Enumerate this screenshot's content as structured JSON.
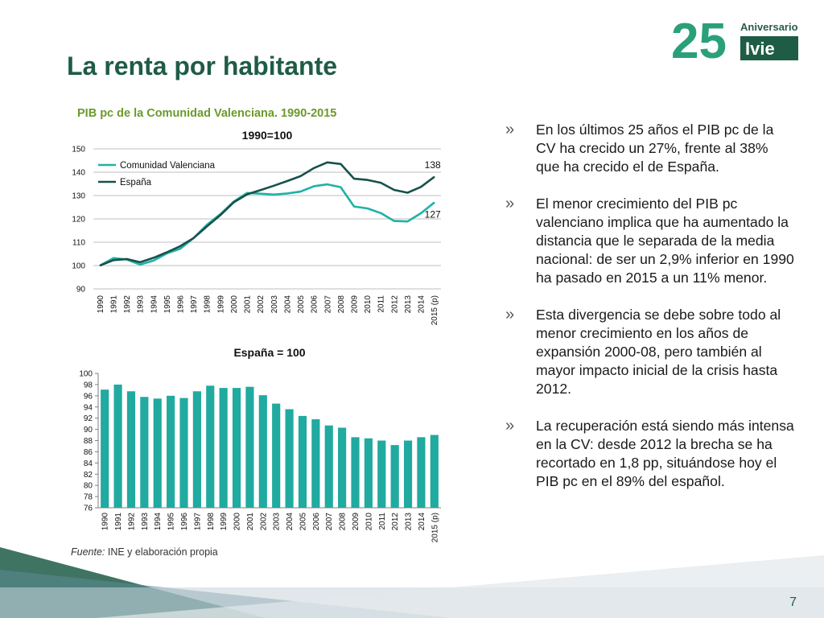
{
  "title": "La renta por habitante",
  "logo": {
    "line1": "Aniversario",
    "number": "25",
    "name": "Ivie"
  },
  "page_number": "7",
  "source": {
    "label": "Fuente:",
    "text": " INE y elaboración propia"
  },
  "colors": {
    "cv": "#1fb2a6",
    "es": "#17514b",
    "bar": "#20aaa0",
    "title": "#1f5c46",
    "subtitle": "#6b9a2a"
  },
  "bullets": [
    {
      "mark": "»",
      "text": "En los últimos 25 años el PIB pc de la CV ha crecido un 27%, frente al 38% que ha crecido el de España."
    },
    {
      "mark": "»",
      "text": "El menor crecimiento del PIB pc valenciano implica que ha aumentado la distancia que le separada de la media nacional: de ser un 2,9% inferior en 1990 ha pasado en 2015 a un 11% menor."
    },
    {
      "mark": "»",
      "text": "Esta divergencia se debe sobre todo al menor crecimiento en los años de expansión 2000-08, pero también al mayor impacto inicial de la crisis hasta 2012."
    },
    {
      "mark": "»",
      "text": "La recuperación está siendo más intensa en la CV: desde 2012 la brecha se ha recortado en 1,8 pp, situándose hoy el PIB pc en el 89% del español."
    }
  ],
  "chart_data": [
    {
      "type": "line",
      "title": "PIB pc de la Comunidad Valenciana. 1990-2015",
      "subtitle": "1990=100",
      "categories": [
        "1990",
        "1991",
        "1992",
        "1993",
        "1994",
        "1995",
        "1996",
        "1997",
        "1998",
        "1999",
        "2000",
        "2001",
        "2002",
        "2003",
        "2004",
        "2005",
        "2006",
        "2007",
        "2008",
        "2009",
        "2010",
        "2011",
        "2012",
        "2013",
        "2014",
        "2015 (p)"
      ],
      "ylim": [
        90,
        150
      ],
      "yticks": [
        90,
        100,
        110,
        120,
        130,
        140,
        150
      ],
      "grid": true,
      "legend": "top-left",
      "series": [
        {
          "name": "Comunidad Valenciana",
          "color": "#1fb2a6",
          "values": [
            100,
            103.2,
            102.6,
            100.4,
            102.1,
            105.2,
            107.2,
            111.8,
            117.5,
            122.0,
            127.4,
            131.1,
            130.8,
            130.4,
            130.9,
            131.7,
            134.0,
            134.8,
            133.6,
            125.3,
            124.5,
            122.5,
            119.1,
            118.9,
            122.4,
            127.0
          ]
        },
        {
          "name": "España",
          "color": "#17514b",
          "values": [
            100,
            102.3,
            102.8,
            101.4,
            103.3,
            105.7,
            108.3,
            111.8,
            116.8,
            121.6,
            127.1,
            130.5,
            132.3,
            134.2,
            136.2,
            138.3,
            141.8,
            144.2,
            143.5,
            137.2,
            136.7,
            135.5,
            132.4,
            131.2,
            133.7,
            138.0
          ]
        }
      ],
      "annotations": [
        {
          "series": "España",
          "label": "138"
        },
        {
          "series": "Comunidad Valenciana",
          "label": "127"
        }
      ]
    },
    {
      "type": "bar",
      "title": "España = 100",
      "categories": [
        "1990",
        "1991",
        "1992",
        "1993",
        "1994",
        "1995",
        "1996",
        "1997",
        "1998",
        "1999",
        "2000",
        "2001",
        "2002",
        "2003",
        "2004",
        "2005",
        "2006",
        "2007",
        "2008",
        "2009",
        "2010",
        "2011",
        "2012",
        "2013",
        "2014",
        "2015 (p)"
      ],
      "ylim": [
        76,
        100
      ],
      "yticks": [
        76,
        78,
        80,
        82,
        84,
        86,
        88,
        90,
        92,
        94,
        96,
        98,
        100
      ],
      "grid": false,
      "values": [
        97.1,
        98.0,
        96.8,
        95.8,
        95.5,
        96.0,
        95.6,
        96.8,
        97.8,
        97.4,
        97.4,
        97.6,
        96.1,
        94.6,
        93.6,
        92.4,
        91.8,
        90.7,
        90.3,
        88.6,
        88.4,
        88.0,
        87.2,
        88.0,
        88.6,
        89.0
      ]
    }
  ]
}
